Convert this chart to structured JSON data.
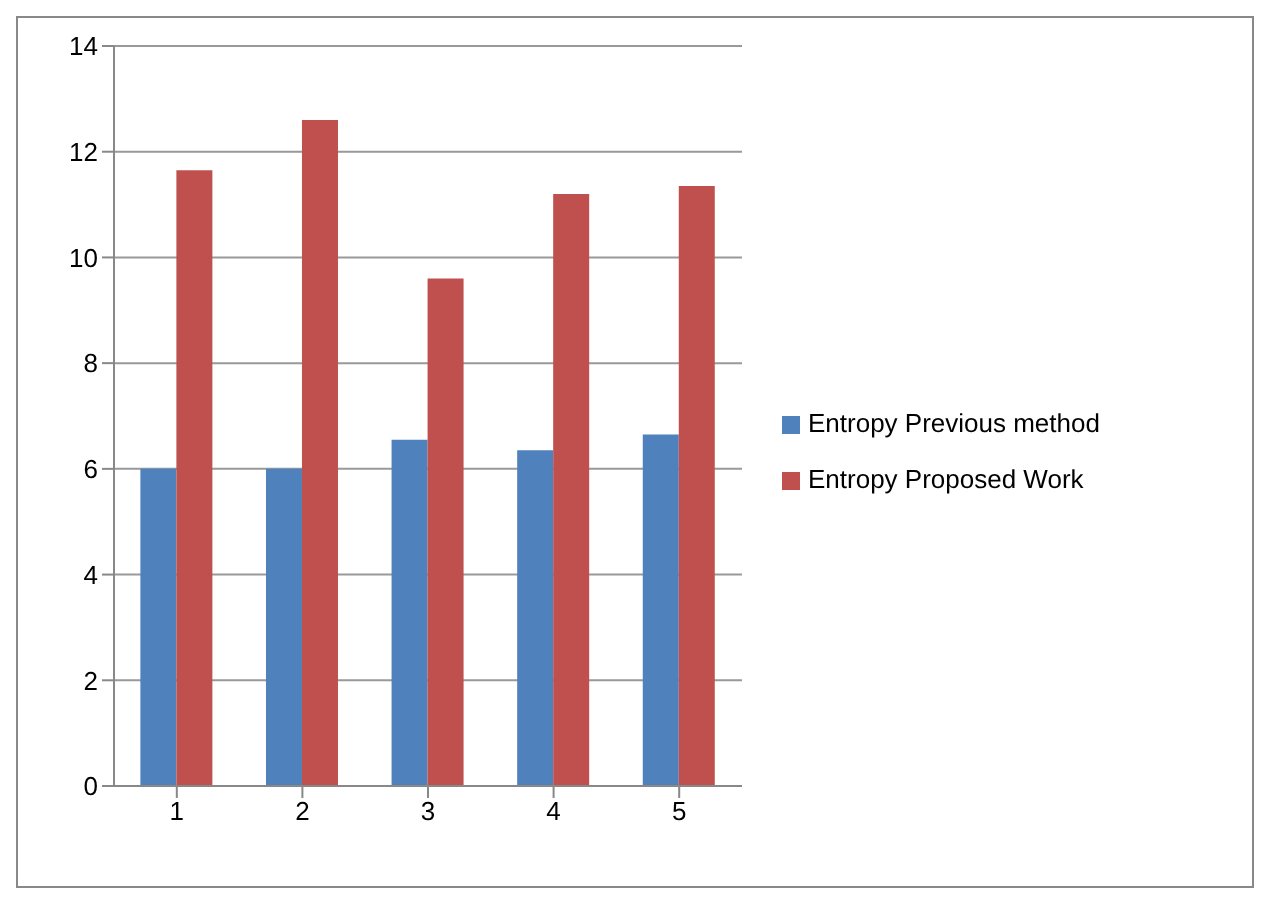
{
  "chart_data": {
    "type": "bar",
    "categories": [
      "1",
      "2",
      "3",
      "4",
      "5"
    ],
    "series": [
      {
        "name": "Entropy Previous method",
        "color": "#4f81bd",
        "values": [
          6.0,
          6.0,
          6.55,
          6.35,
          6.65
        ]
      },
      {
        "name": "Entropy Proposed Work",
        "color": "#c0504d",
        "values": [
          11.65,
          12.6,
          9.6,
          11.2,
          11.35
        ]
      }
    ],
    "ylim": [
      0,
      14
    ],
    "yticks": [
      0,
      2,
      4,
      6,
      8,
      10,
      12,
      14
    ],
    "grid": "y",
    "legend": "right"
  }
}
